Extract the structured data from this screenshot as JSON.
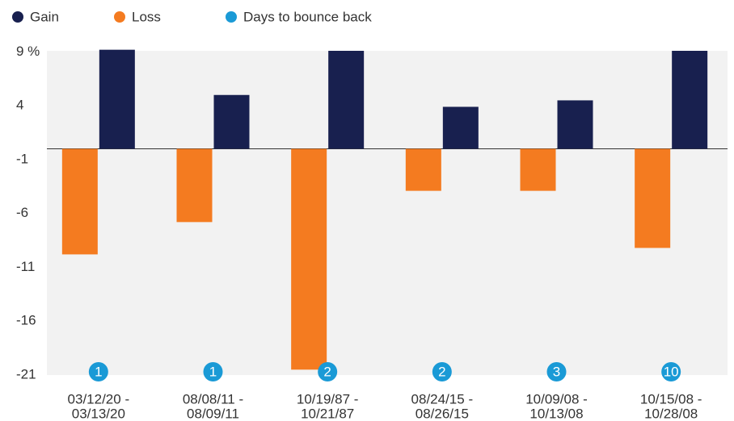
{
  "chart_data": {
    "type": "bar",
    "categories": [
      [
        "03/12/20 -",
        "03/13/20"
      ],
      [
        "08/08/11 -",
        "08/09/11"
      ],
      [
        "10/19/87 -",
        "10/21/87"
      ],
      [
        "08/24/15 -",
        "08/26/15"
      ],
      [
        "10/09/08 -",
        "10/13/08"
      ],
      [
        "10/15/08 -",
        "10/28/08"
      ]
    ],
    "series": [
      {
        "name": "Gain",
        "color": "#18204f",
        "values": [
          9.2,
          5.0,
          9.1,
          3.9,
          4.5,
          9.1
        ]
      },
      {
        "name": "Loss",
        "color": "#f47b20",
        "values": [
          -9.8,
          -6.8,
          -20.5,
          -3.9,
          -3.9,
          -9.2
        ]
      },
      {
        "name": "Days to bounce back",
        "color": "#1a9ad6",
        "values": [
          1,
          1,
          2,
          2,
          3,
          10
        ]
      }
    ],
    "ylim": [
      -21,
      9.1
    ],
    "yticks": [
      {
        "value": 9,
        "label": "9 %"
      },
      4,
      -1,
      -6,
      -11,
      -16,
      -21
    ]
  }
}
